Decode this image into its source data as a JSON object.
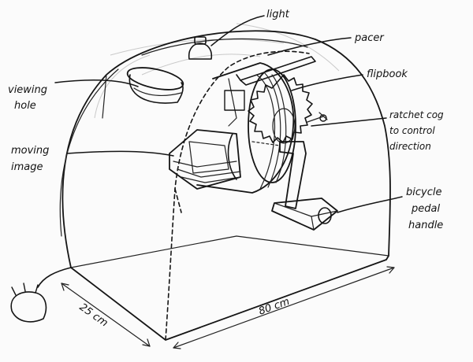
{
  "labels": {
    "light": "light",
    "pacer": "pacer",
    "flipbook": "flipbook",
    "viewing_hole": [
      "viewing",
      "hole"
    ],
    "ratchet": [
      "ratchet cog",
      "to control",
      "direction"
    ],
    "moving_image": [
      "moving",
      "image"
    ],
    "bicycle": [
      "bicycle",
      "pedal",
      "handle"
    ],
    "width_dim": "80 cm",
    "depth_dim": "25 cm"
  },
  "colors": {
    "ink": "#151515",
    "paper": "#fbfbfb",
    "ghost": "#c9c9c9"
  }
}
